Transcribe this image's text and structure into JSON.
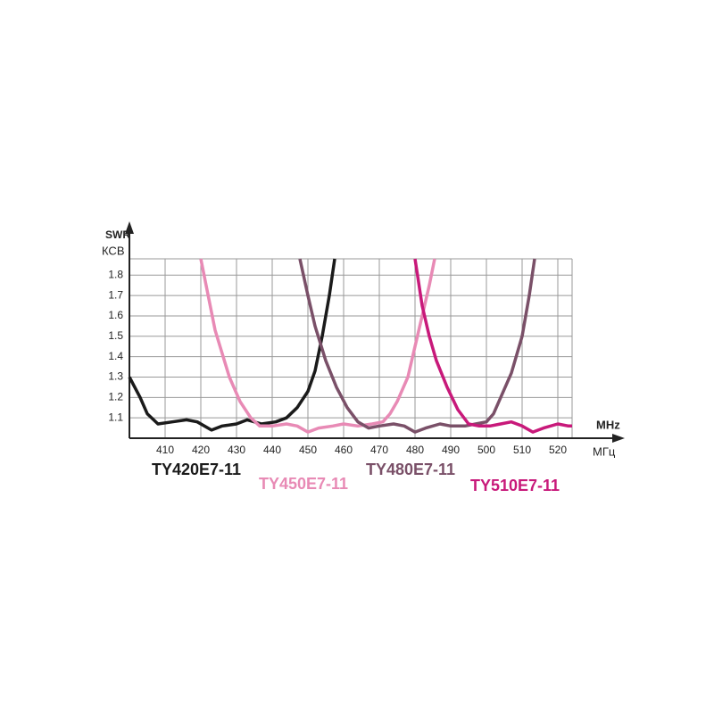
{
  "chart_data": {
    "type": "line",
    "y_label": "SWR",
    "y_label_alt": "КСВ",
    "x_label": "MHz",
    "x_label_alt": "МГц",
    "xlim": [
      400,
      524
    ],
    "ylim": [
      1.0,
      1.88
    ],
    "xticks": [
      410,
      420,
      430,
      440,
      450,
      460,
      470,
      480,
      490,
      500,
      510,
      520
    ],
    "yticks": [
      1.1,
      1.2,
      1.3,
      1.4,
      1.5,
      1.6,
      1.7,
      1.8
    ],
    "grid": true,
    "series": [
      {
        "name": "TY420E7-11",
        "color": "#1a1a1a",
        "x": [
          400,
          403,
          405,
          408,
          412,
          416,
          419,
          423,
          426,
          430,
          433,
          437,
          441,
          444,
          447,
          450,
          452,
          454,
          456,
          457.5
        ],
        "values": [
          1.3,
          1.2,
          1.12,
          1.07,
          1.08,
          1.09,
          1.08,
          1.04,
          1.06,
          1.07,
          1.09,
          1.07,
          1.08,
          1.1,
          1.15,
          1.23,
          1.33,
          1.5,
          1.7,
          1.88
        ]
      },
      {
        "name": "TY450E7-11",
        "color": "#e88ab5",
        "x": [
          420,
          424,
          428,
          431,
          434,
          436.5,
          440,
          444,
          447,
          450,
          453,
          457,
          460,
          464,
          468,
          471,
          473,
          475,
          478,
          480,
          482,
          484,
          485.5
        ],
        "values": [
          1.88,
          1.53,
          1.3,
          1.18,
          1.1,
          1.06,
          1.06,
          1.07,
          1.06,
          1.03,
          1.05,
          1.06,
          1.07,
          1.06,
          1.07,
          1.08,
          1.12,
          1.18,
          1.3,
          1.45,
          1.6,
          1.75,
          1.88
        ]
      },
      {
        "name": "TY480E7-11",
        "color": "#7a5068",
        "x": [
          447.75,
          450,
          452,
          455,
          458,
          461,
          464,
          467,
          470,
          474,
          477,
          480,
          483,
          487,
          490,
          494,
          497,
          500,
          502,
          504,
          507,
          510,
          512,
          513.5
        ],
        "values": [
          1.88,
          1.7,
          1.55,
          1.38,
          1.25,
          1.15,
          1.08,
          1.05,
          1.06,
          1.07,
          1.06,
          1.03,
          1.05,
          1.07,
          1.06,
          1.06,
          1.07,
          1.08,
          1.12,
          1.2,
          1.32,
          1.5,
          1.7,
          1.88
        ]
      },
      {
        "name": "TY510E7-11",
        "color": "#c8197a",
        "x": [
          480,
          482,
          484,
          486,
          489,
          492,
          495,
          498,
          501,
          504,
          507,
          510,
          513,
          516,
          520,
          523,
          524
        ],
        "values": [
          1.88,
          1.65,
          1.5,
          1.38,
          1.25,
          1.14,
          1.07,
          1.06,
          1.06,
          1.07,
          1.08,
          1.06,
          1.03,
          1.05,
          1.07,
          1.06,
          1.06
        ]
      }
    ]
  }
}
